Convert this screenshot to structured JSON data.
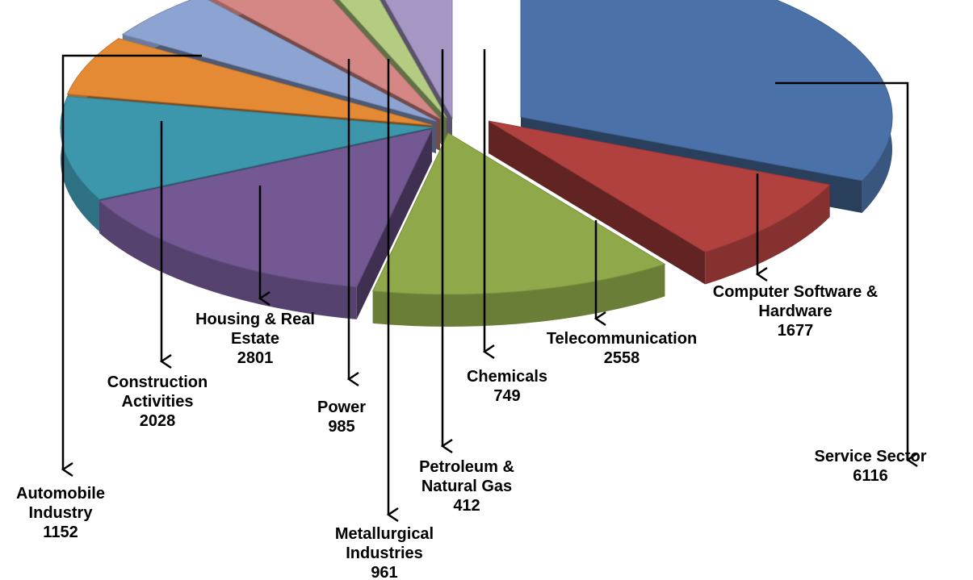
{
  "chart_data": {
    "type": "pie",
    "title": "",
    "style": "3d-exploded",
    "slices": [
      {
        "label": "Service Sector",
        "value": 6116,
        "color": "#4a72a8"
      },
      {
        "label": "Computer Software & Hardware",
        "value": 1677,
        "color": "#b0413e"
      },
      {
        "label": "Telecommunication",
        "value": 2558,
        "color": "#8ea84a"
      },
      {
        "label": "Housing & Real Estate",
        "value": 2801,
        "color": "#735893"
      },
      {
        "label": "Construction Activities",
        "value": 2028,
        "color": "#3c97ad"
      },
      {
        "label": "Automobile Industry",
        "value": 1152,
        "color": "#e48a35"
      },
      {
        "label": "Power",
        "value": 985,
        "color": "#8da4d2"
      },
      {
        "label": "Metallurgical Industries",
        "value": 961,
        "color": "#d48785"
      },
      {
        "label": "Petroleum & Natural Gas",
        "value": 412,
        "color": "#b3cc82"
      },
      {
        "label": "Chemicals",
        "value": 749,
        "color": "#a696c4"
      }
    ]
  }
}
